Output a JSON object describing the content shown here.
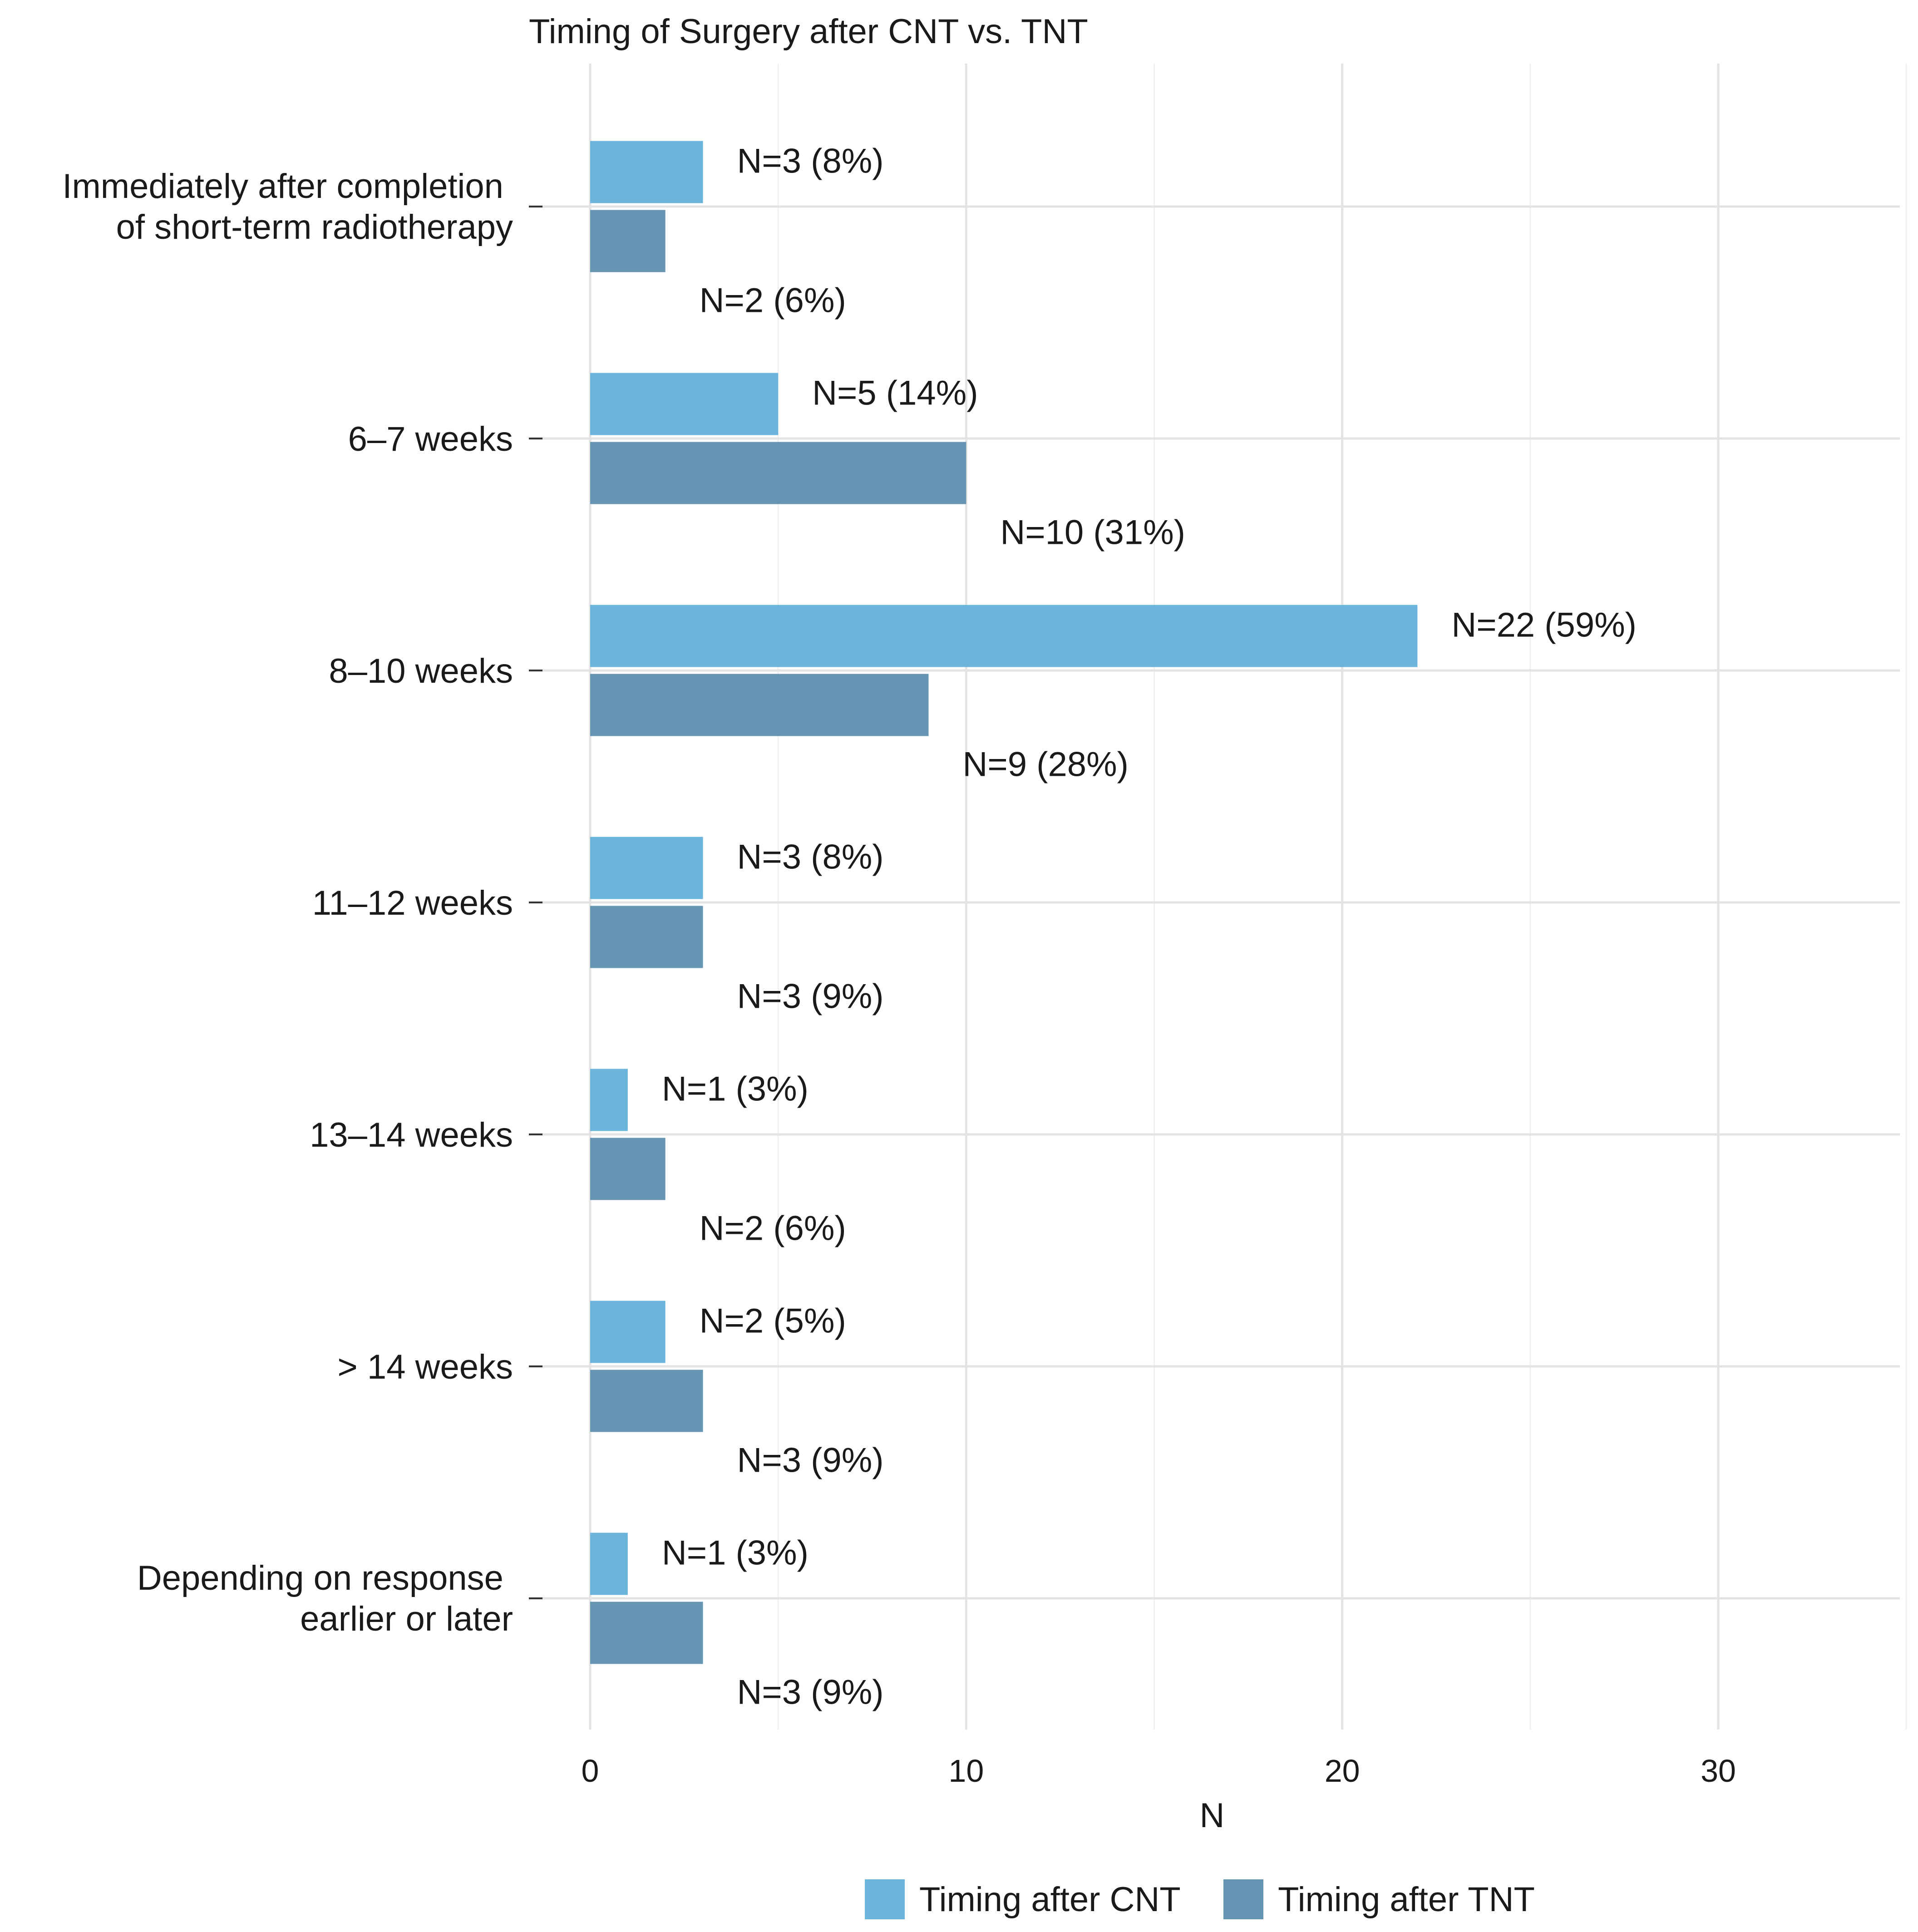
{
  "chart_data": {
    "type": "bar",
    "orientation": "horizontal",
    "title": "Timing of Surgery after CNT vs. TNT",
    "xlabel": "N",
    "ylabel": "",
    "xlim": [
      0,
      35
    ],
    "x_ticks": [
      0,
      10,
      20,
      30
    ],
    "x_tick_labels": [
      "0",
      "10",
      "20",
      "30"
    ],
    "grid": true,
    "legend_position": "bottom",
    "categories": [
      [
        "Immediately after completion ",
        "of short-term radiotherapy"
      ],
      [
        "6–7 weeks"
      ],
      [
        "8–10 weeks"
      ],
      [
        "11–12 weeks"
      ],
      [
        "13–14 weeks"
      ],
      [
        "> 14 weeks"
      ],
      [
        "Depending on response ",
        "earlier or later"
      ]
    ],
    "series": [
      {
        "name": "Timing after CNT",
        "color": "#6BB5DD",
        "values": [
          3,
          5,
          22,
          3,
          1,
          2,
          1
        ],
        "labels": [
          "N=3 (8%)",
          "N=5 (14%)",
          "N=22 (59%)",
          "N=3 (8%)",
          "N=1 (3%)",
          "N=2 (5%)",
          "N=1 (3%)"
        ]
      },
      {
        "name": "Timing after TNT",
        "color": "#6595B3",
        "values": [
          2,
          10,
          9,
          3,
          2,
          3,
          3
        ],
        "labels": [
          "N=2 (6%)",
          "N=10 (31%)",
          "N=9 (28%)",
          "N=3 (9%)",
          "N=2 (6%)",
          "N=3 (9%)",
          "N=3 (9%)"
        ]
      }
    ]
  }
}
